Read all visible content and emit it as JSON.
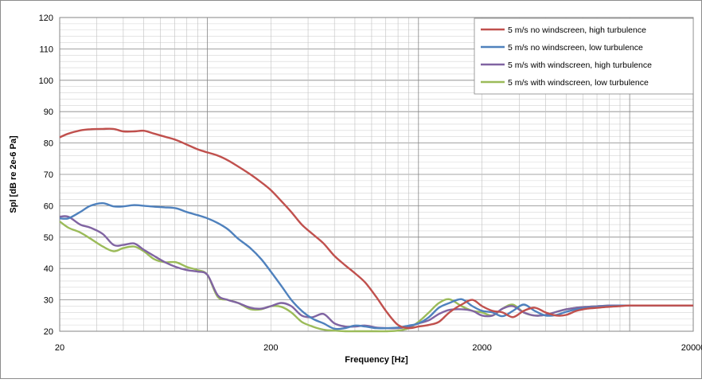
{
  "chart_data": {
    "type": "line",
    "title": "",
    "xlabel": "Frequency [Hz]",
    "ylabel": "Spl [dB re 2e-6 Pa]",
    "x_scale": "log",
    "xlim": [
      20,
      20000
    ],
    "ylim": [
      20,
      120
    ],
    "x_tick_labels": [
      "20",
      "200",
      "2000",
      "20000"
    ],
    "y_ticks": [
      20,
      30,
      40,
      50,
      60,
      70,
      80,
      90,
      100,
      110,
      120
    ],
    "grid": true,
    "legend_position": "top-right",
    "series": [
      {
        "name": "5 m/s no windscreen, high turbulence",
        "color": "#c0504d",
        "x": [
          20,
          22,
          25,
          28,
          32,
          36,
          40,
          45,
          50,
          56,
          63,
          71,
          80,
          90,
          100,
          112,
          125,
          140,
          160,
          180,
          200,
          224,
          250,
          280,
          315,
          355,
          400,
          450,
          500,
          560,
          630,
          710,
          800,
          900,
          1000,
          1120,
          1250,
          1400,
          1600,
          1800,
          2000,
          2240,
          2500,
          2800,
          3150,
          3550,
          4000,
          4500,
          5000,
          5600,
          6300,
          7100,
          8000,
          9000,
          10000,
          11200,
          12500,
          14000,
          16000,
          18000,
          20000
        ],
        "y": [
          81.8,
          83.0,
          84.0,
          84.4,
          84.5,
          84.5,
          83.7,
          83.7,
          83.9,
          83.0,
          82.0,
          81.0,
          79.5,
          78.0,
          77.0,
          76.0,
          74.5,
          72.5,
          70.0,
          67.5,
          65.0,
          61.5,
          58.0,
          54.0,
          51.0,
          48.0,
          44.0,
          41.0,
          38.5,
          35.5,
          31.0,
          26.0,
          22.0,
          21.0,
          21.5,
          22.0,
          23.0,
          26.0,
          28.5,
          30.0,
          28.0,
          26.5,
          26.0,
          24.5,
          26.5,
          27.5,
          26.0,
          25.0,
          25.2,
          26.5,
          27.2,
          27.5,
          27.8,
          28.0,
          28.2,
          28.2,
          28.2,
          28.2,
          28.2,
          28.2,
          28.2
        ]
      },
      {
        "name": "5 m/s no windscreen, low turbulence",
        "color": "#4f81bd",
        "x": [
          20,
          22,
          25,
          28,
          32,
          36,
          40,
          45,
          50,
          56,
          63,
          71,
          80,
          90,
          100,
          112,
          125,
          140,
          160,
          180,
          200,
          224,
          250,
          280,
          315,
          355,
          400,
          450,
          500,
          560,
          630,
          710,
          800,
          900,
          1000,
          1120,
          1250,
          1400,
          1600,
          1800,
          2000,
          2240,
          2500,
          2800,
          3150,
          3550,
          4000,
          4500,
          5000,
          5600,
          6300,
          7100,
          8000,
          9000,
          10000,
          11200,
          12500,
          14000,
          16000,
          18000,
          20000
        ],
        "y": [
          56.0,
          56.0,
          58.0,
          60.0,
          60.8,
          59.8,
          59.8,
          60.2,
          60.0,
          59.7,
          59.5,
          59.2,
          58.0,
          57.0,
          56.0,
          54.5,
          52.5,
          49.5,
          46.5,
          43.0,
          39.0,
          34.5,
          30.0,
          26.5,
          24.0,
          22.5,
          20.8,
          21.0,
          21.8,
          21.5,
          21.0,
          21.0,
          21.2,
          21.8,
          22.5,
          24.5,
          27.5,
          29.0,
          30.2,
          28.0,
          26.5,
          26.0,
          24.8,
          26.5,
          28.5,
          26.5,
          25.0,
          25.2,
          26.2,
          27.0,
          27.5,
          27.8,
          28.0,
          28.2,
          28.2,
          28.2,
          28.2,
          28.2,
          28.2,
          28.2,
          28.2
        ]
      },
      {
        "name": "5 m/s with windscreen, high turbulence",
        "color": "#8064a2",
        "x": [
          20,
          22,
          25,
          28,
          32,
          36,
          40,
          45,
          50,
          56,
          63,
          71,
          80,
          90,
          100,
          112,
          125,
          140,
          160,
          180,
          200,
          224,
          250,
          280,
          315,
          355,
          400,
          450,
          500,
          560,
          630,
          710,
          800,
          900,
          1000,
          1120,
          1250,
          1400,
          1600,
          1800,
          2000,
          2240,
          2500,
          2800,
          3150,
          3550,
          4000,
          4500,
          5000,
          5600,
          6300,
          7100,
          8000,
          9000,
          10000,
          11200,
          12500,
          14000,
          16000,
          18000,
          20000
        ],
        "y": [
          56.5,
          56.5,
          54.0,
          53.0,
          51.0,
          47.5,
          47.5,
          48.0,
          46.0,
          44.0,
          42.0,
          40.5,
          39.5,
          39.0,
          38.0,
          31.5,
          30.0,
          29.0,
          27.5,
          27.2,
          28.0,
          29.0,
          28.0,
          25.0,
          24.5,
          25.5,
          22.5,
          21.5,
          21.5,
          21.8,
          21.2,
          21.0,
          21.0,
          21.5,
          22.5,
          23.5,
          25.5,
          26.8,
          27.0,
          26.5,
          25.0,
          25.0,
          27.2,
          28.0,
          26.0,
          25.0,
          25.2,
          26.2,
          27.0,
          27.5,
          27.8,
          28.0,
          28.2,
          28.2,
          28.2,
          28.2,
          28.2,
          28.2,
          28.2,
          28.2,
          28.2
        ]
      },
      {
        "name": "5 m/s with windscreen, low turbulence",
        "color": "#9bbb59",
        "x": [
          20,
          22,
          25,
          28,
          32,
          36,
          40,
          45,
          50,
          56,
          63,
          71,
          80,
          90,
          100,
          112,
          125,
          140,
          160,
          180,
          200,
          224,
          250,
          280,
          315,
          355,
          400,
          450,
          500,
          560,
          630,
          710,
          800,
          900,
          1000,
          1120,
          1250,
          1400,
          1600,
          1800,
          2000,
          2240,
          2500,
          2800,
          3150,
          3550,
          4000,
          4500,
          5000,
          5600,
          6300,
          7100,
          8000,
          9000,
          10000,
          11200,
          12500,
          14000,
          16000,
          18000,
          20000
        ],
        "y": [
          55.0,
          53.0,
          51.5,
          49.5,
          47.0,
          45.5,
          46.5,
          47.0,
          45.5,
          43.0,
          42.0,
          42.0,
          40.5,
          39.5,
          38.0,
          31.0,
          30.0,
          29.0,
          27.0,
          27.0,
          28.0,
          27.8,
          26.0,
          23.0,
          21.5,
          20.5,
          20.2,
          20.0,
          20.0,
          20.0,
          20.0,
          20.0,
          20.2,
          21.0,
          23.0,
          26.0,
          29.0,
          30.2,
          28.0,
          26.5,
          26.0,
          25.0,
          27.2,
          28.5,
          26.0,
          25.0,
          25.2,
          26.2,
          27.0,
          27.5,
          27.8,
          28.0,
          28.2,
          28.2,
          28.2,
          28.2,
          28.2,
          28.2,
          28.2,
          28.2,
          28.2
        ]
      }
    ]
  }
}
